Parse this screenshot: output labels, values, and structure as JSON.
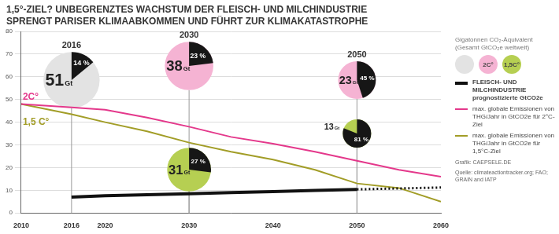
{
  "chart_data": {
    "type": "line",
    "title": "1,5°-ZIEL? UNBEGRENZTES WACHSTUM DER FLEISCH- UND MILCHINDUSTRIE\nSPRENGT PARISER KLIMAABKOMMEN UND FÜHRT ZUR KLIMAKATASTROPHE",
    "x": [
      2010,
      2016,
      2020,
      2025,
      2030,
      2035,
      2040,
      2045,
      2050,
      2055,
      2060
    ],
    "xlim": [
      2010,
      2060
    ],
    "xticks": [
      2010,
      2016,
      2020,
      2030,
      2040,
      2050,
      2060
    ],
    "ylim": [
      0,
      80
    ],
    "yticks": [
      0,
      10,
      20,
      30,
      40,
      50,
      60,
      70,
      80
    ],
    "grid": true,
    "series": [
      {
        "name": "FLEISCH- UND MILCHINDUSTRIE prognostizierte GtCO2e",
        "color": "#111111",
        "line_style": "solid",
        "values": [
          null,
          7,
          7.6,
          8,
          8.5,
          9,
          9.4,
          9.9,
          10.4,
          null,
          null
        ]
      },
      {
        "color": "#111111",
        "line_style": "dotted",
        "values": [
          null,
          null,
          null,
          null,
          null,
          null,
          null,
          null,
          10.4,
          10.8,
          11.2
        ]
      },
      {
        "name": "max. globale Emissionen von THG/Jahr in GtCO2e für 2°C-Ziel",
        "color": "#e4388b",
        "line_style": "solid",
        "values": [
          48,
          46.5,
          45.5,
          42,
          38,
          33.5,
          30.5,
          27,
          23,
          19,
          16
        ]
      },
      {
        "name": "max. globale Emissionen von THG/Jahr in GtCO2e für 1,5°C-Ziel",
        "color": "#a29d27",
        "line_style": "solid",
        "values": [
          48,
          43.5,
          40,
          36,
          31,
          27,
          23.5,
          19,
          13,
          11,
          5
        ]
      }
    ],
    "annotations": [
      {
        "text": "2C°",
        "x": 2010,
        "y": 51,
        "color": "#e4388b"
      },
      {
        "text": "1,5 C°",
        "x": 2010,
        "y": 40,
        "color": "#a29d27"
      }
    ],
    "bubbles": {
      "unit": "Gt",
      "items": [
        {
          "year": 2016,
          "total": 51,
          "share": 14,
          "share_label": "14 %",
          "color": "#e3e3e3"
        },
        {
          "year": 2030,
          "total": 38,
          "share": 23,
          "share_label": "23 %",
          "color": "#f5b3d3"
        },
        {
          "year": 2030,
          "total": 31,
          "share": 27,
          "share_label": "27 %",
          "color": "#b6cf52"
        },
        {
          "year": 2050,
          "total": 23,
          "share": 45,
          "share_label": "45 %",
          "color": "#f5b3d3"
        },
        {
          "year": 2050,
          "total": 13,
          "share": 81,
          "share_label": "81 %",
          "color": "#b6cf52"
        }
      ]
    },
    "bubble_legend": {
      "title": "Gigatonnen CO₂-Äquivalent (Gesamt GtCO₂e weltweit)",
      "items": [
        {
          "color": "#e3e3e3"
        },
        {
          "label": "2C°",
          "color": "#f5b3d3"
        },
        {
          "label": "1,5C°",
          "color": "#b6cf52"
        }
      ]
    },
    "credit": "Grafik: CAEPSELE.DE",
    "source": "Quelle: climateactiontracker.org; FAO; GRAIN and IATP"
  }
}
